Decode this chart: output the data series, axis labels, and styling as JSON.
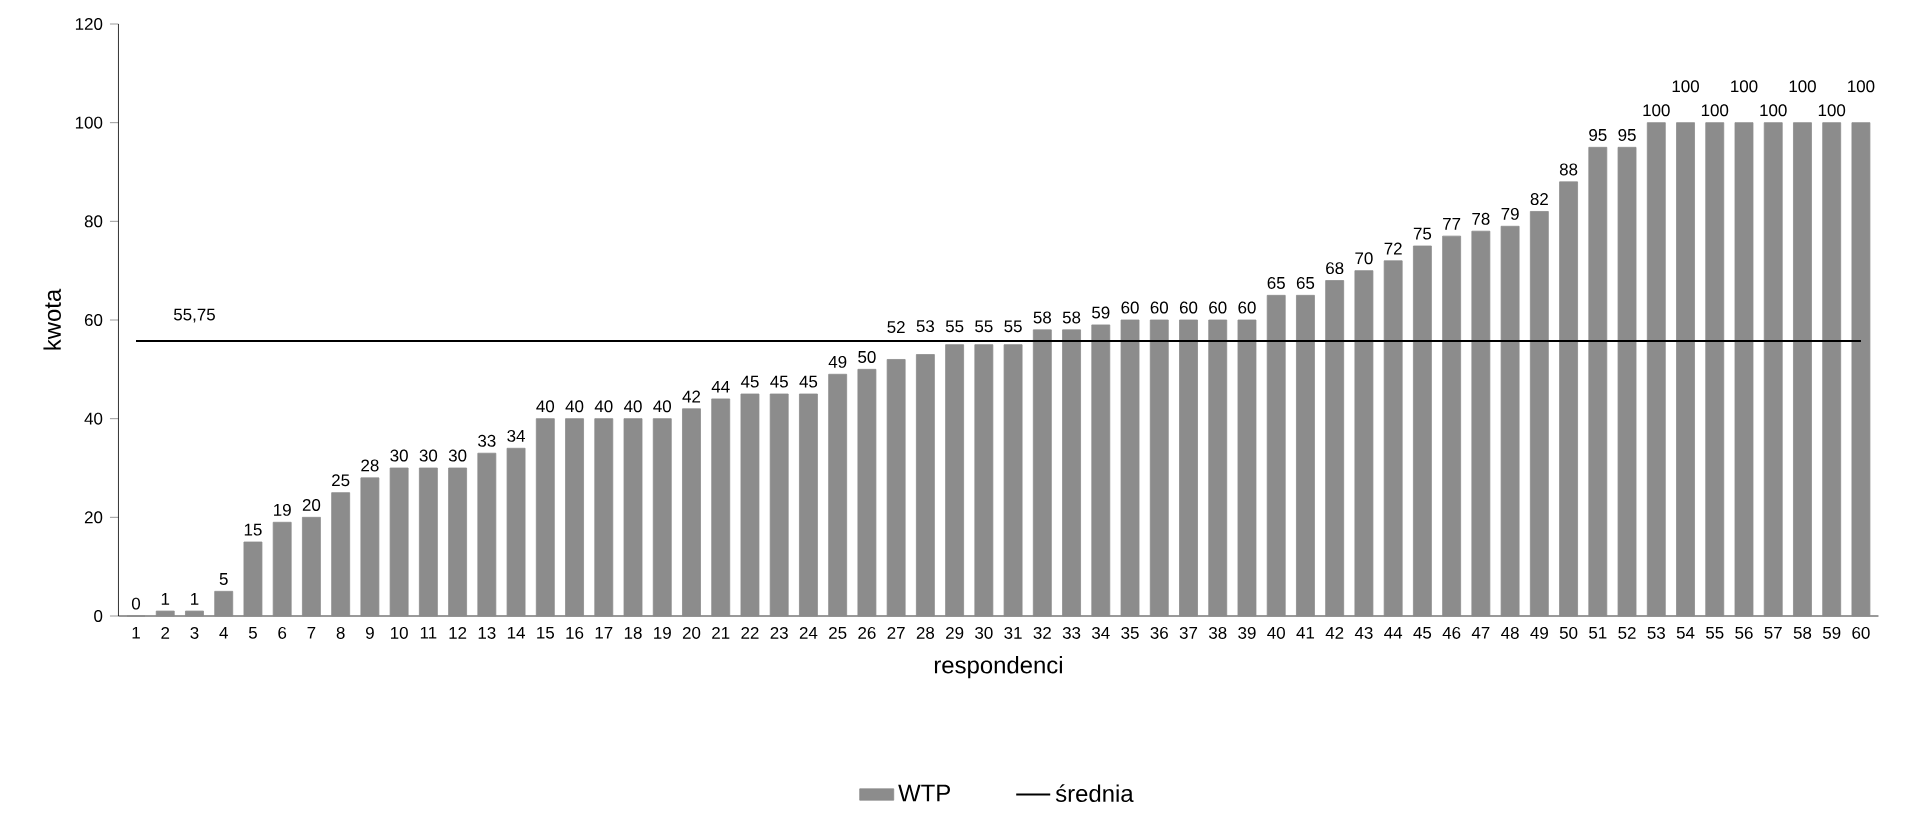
{
  "chart_data": {
    "type": "bar",
    "categories": [
      "1",
      "2",
      "3",
      "4",
      "5",
      "6",
      "7",
      "8",
      "9",
      "10",
      "11",
      "12",
      "13",
      "14",
      "15",
      "16",
      "17",
      "18",
      "19",
      "20",
      "21",
      "22",
      "23",
      "24",
      "25",
      "26",
      "27",
      "28",
      "29",
      "30",
      "31",
      "32",
      "33",
      "34",
      "35",
      "36",
      "37",
      "38",
      "39",
      "40",
      "41",
      "42",
      "43",
      "44",
      "45",
      "46",
      "47",
      "48",
      "49",
      "50",
      "51",
      "52",
      "53",
      "54",
      "55",
      "56",
      "57",
      "58",
      "59",
      "60"
    ],
    "series": [
      {
        "name": "WTP",
        "color": "#8c8c8c",
        "values": [
          0,
          1,
          1,
          5,
          15,
          19,
          20,
          25,
          28,
          30,
          30,
          30,
          33,
          34,
          40,
          40,
          40,
          40,
          40,
          42,
          44,
          45,
          45,
          45,
          49,
          50,
          52,
          53,
          55,
          55,
          55,
          58,
          58,
          59,
          60,
          60,
          60,
          60,
          60,
          65,
          65,
          68,
          70,
          72,
          75,
          77,
          78,
          79,
          82,
          88,
          95,
          95,
          100,
          100,
          100,
          100,
          100,
          100,
          100,
          100
        ],
        "value_labels": [
          "0",
          "1",
          "1",
          "5",
          "15",
          "19",
          "20",
          "25",
          "28",
          "30",
          "30",
          "30",
          "33",
          "34",
          "40",
          "40",
          "40",
          "40",
          "40",
          "42",
          "44",
          "45",
          "45",
          "45",
          "49",
          "50",
          "52",
          "53",
          "55",
          "55",
          "55",
          "58",
          "58",
          "59",
          "60",
          "60",
          "60",
          "60",
          "60",
          "65",
          "65",
          "68",
          "70",
          "72",
          "75",
          "77",
          "78",
          "79",
          "82",
          "88",
          "95",
          "95",
          "100",
          "100",
          "100",
          "100",
          "100",
          "100",
          "100",
          "100"
        ]
      },
      {
        "name": "średnia",
        "type": "line",
        "color": "#000000",
        "values": [
          55.75,
          55.75,
          55.75,
          55.75,
          55.75,
          55.75,
          55.75,
          55.75,
          55.75,
          55.75,
          55.75,
          55.75,
          55.75,
          55.75,
          55.75,
          55.75,
          55.75,
          55.75,
          55.75,
          55.75,
          55.75,
          55.75,
          55.75,
          55.75,
          55.75,
          55.75,
          55.75,
          55.75,
          55.75,
          55.75,
          55.75,
          55.75,
          55.75,
          55.75,
          55.75,
          55.75,
          55.75,
          55.75,
          55.75,
          55.75,
          55.75,
          55.75,
          55.75,
          55.75,
          55.75,
          55.75,
          55.75,
          55.75,
          55.75,
          55.75,
          55.75,
          55.75,
          55.75,
          55.75,
          55.75,
          55.75,
          55.75,
          55.75,
          55.75,
          55.75
        ]
      }
    ],
    "annotations": [
      {
        "text": "55,75",
        "x": "3",
        "y": 55.75
      }
    ],
    "xlabel": "respondenci",
    "ylabel": "kwota",
    "ylim": [
      0,
      120
    ],
    "yticks": [
      0,
      20,
      40,
      60,
      80,
      100,
      120
    ],
    "legend": "bottom"
  }
}
